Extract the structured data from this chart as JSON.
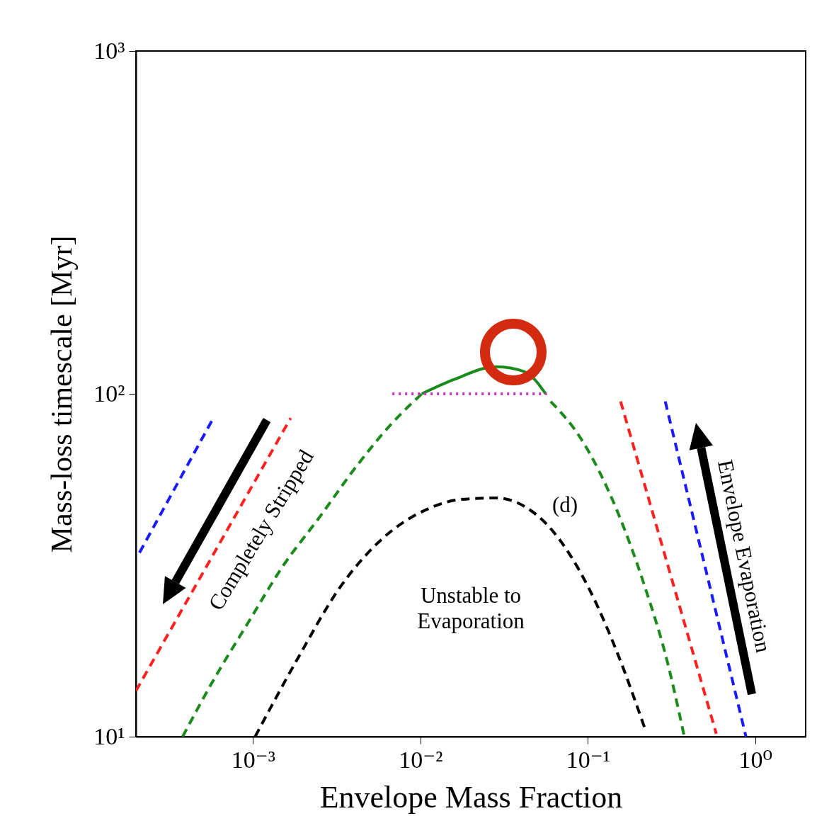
{
  "chart_data": {
    "type": "line",
    "xlabel": "Envelope Mass Fraction",
    "ylabel": "Mass-loss timescale [Myr]",
    "log": "xy",
    "grid": false,
    "xlim": [
      0.0002,
      2
    ],
    "ylim": [
      10,
      1000
    ],
    "xticks": [
      {
        "value": 0.001,
        "label": "10⁻³"
      },
      {
        "value": 0.01,
        "label": "10⁻²"
      },
      {
        "value": 0.1,
        "label": "10⁻¹"
      },
      {
        "value": 1,
        "label": "10⁰"
      }
    ],
    "yticks": [
      {
        "value": 10,
        "label": "10¹"
      },
      {
        "value": 100,
        "label": "10²"
      },
      {
        "value": 1000,
        "label": "10³"
      }
    ],
    "series": [
      {
        "color": "#1a8a1a",
        "line_style": "dashed",
        "x": [
          0.00038,
          0.00058,
          0.00093,
          0.0015,
          0.0025,
          0.0041,
          0.0066,
          0.0102
        ],
        "values": [
          10,
          14.6,
          21.4,
          31.3,
          43.7,
          61,
          81,
          100
        ]
      },
      {
        "color": "#1a8a1a",
        "line_style": "solid",
        "x": [
          0.0102,
          0.0158,
          0.0284,
          0.042,
          0.056
        ],
        "values": [
          100,
          110,
          120,
          116,
          100
        ]
      },
      {
        "color": "#1a8a1a",
        "line_style": "dashed",
        "x": [
          0.06,
          0.091,
          0.149,
          0.22,
          0.295,
          0.377
        ],
        "values": [
          95,
          74,
          45.8,
          27.2,
          16.9,
          10
        ]
      },
      {
        "color": "#000000",
        "line_style": "dashed",
        "x": [
          0.00103,
          0.00185,
          0.0033,
          0.00596,
          0.0107,
          0.0175,
          0.0284,
          0.042,
          0.062,
          0.101,
          0.149,
          0.22
        ],
        "values": [
          10,
          16.9,
          27.2,
          37.9,
          45.8,
          49.2,
          49.7,
          46.9,
          39.7,
          27.2,
          17.7,
          10.5
        ]
      },
      {
        "color": "#ff2020",
        "line_style": "dashed",
        "x": [
          0.0002,
          0.00168
        ],
        "values": [
          13.6,
          85
        ]
      },
      {
        "color": "#1a1aff",
        "line_style": "dashed",
        "x": [
          0.00021,
          0.00058
        ],
        "values": [
          34.4,
          85
        ]
      },
      {
        "color": "#ff2020",
        "line_style": "dashed",
        "x": [
          0.157,
          0.585
        ],
        "values": [
          95,
          10.2
        ]
      },
      {
        "color": "#1a1aff",
        "line_style": "dashed",
        "x": [
          0.29,
          0.88
        ],
        "values": [
          95,
          10
        ]
      },
      {
        "color": "#cc33cc",
        "line_style": "dotted",
        "x": [
          0.0068,
          0.057
        ],
        "values": [
          100,
          100
        ]
      }
    ],
    "annotations": [
      "(d)",
      "Unstable to\nEvaporation",
      "Completely Stripped",
      "Envelope Evaporation"
    ]
  }
}
